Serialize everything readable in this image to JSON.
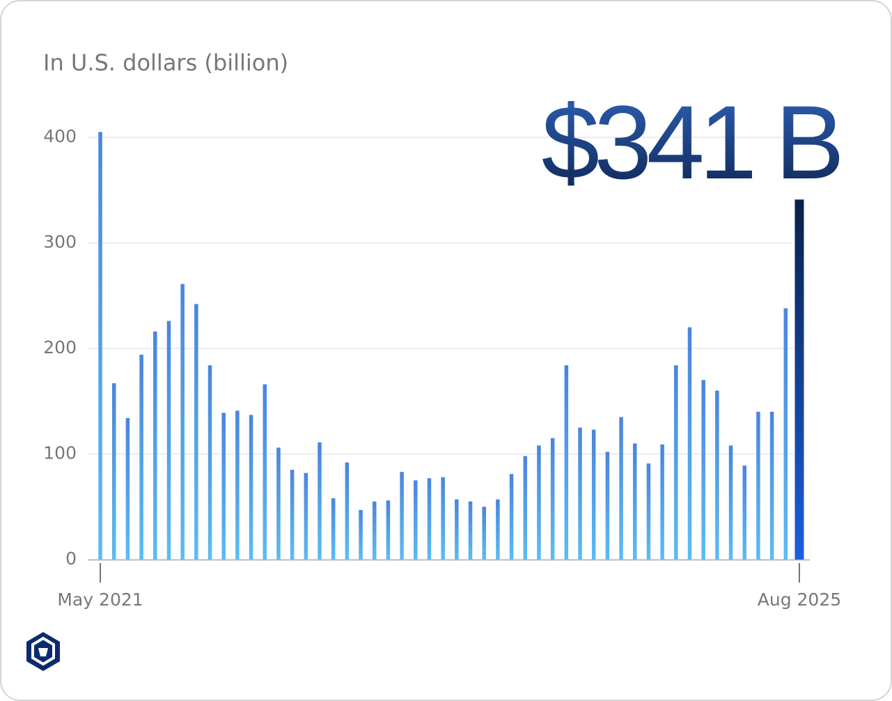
{
  "chart_data": {
    "type": "bar",
    "title": "In U.S. dollars (billion)",
    "categories": [
      "May 2021",
      null,
      null,
      null,
      null,
      null,
      null,
      null,
      null,
      null,
      null,
      null,
      null,
      null,
      null,
      null,
      null,
      null,
      null,
      null,
      null,
      null,
      null,
      null,
      null,
      null,
      null,
      null,
      null,
      null,
      null,
      null,
      null,
      null,
      null,
      null,
      null,
      null,
      null,
      null,
      null,
      null,
      null,
      null,
      null,
      null,
      null,
      null,
      null,
      null,
      null,
      "Aug 2025"
    ],
    "values": [
      405,
      167,
      134,
      194,
      216,
      226,
      261,
      242,
      184,
      139,
      141,
      137,
      166,
      106,
      85,
      82,
      111,
      58,
      92,
      47,
      55,
      56,
      83,
      75,
      77,
      78,
      57,
      55,
      50,
      57,
      81,
      98,
      108,
      115,
      184,
      125,
      123,
      102,
      135,
      110,
      91,
      109,
      184,
      220,
      170,
      160,
      108,
      89,
      140,
      140,
      238,
      341
    ],
    "value_labels": [
      null,
      null,
      null,
      null,
      null,
      null,
      null,
      null,
      null,
      null,
      null,
      null,
      null,
      null,
      null,
      null,
      null,
      null,
      null,
      null,
      null,
      null,
      null,
      null,
      null,
      null,
      null,
      null,
      null,
      null,
      null,
      null,
      null,
      null,
      null,
      null,
      null,
      null,
      null,
      null,
      null,
      null,
      null,
      null,
      null,
      null,
      null,
      null,
      null,
      null,
      null,
      "$341 B"
    ],
    "color": "#4d8fe6",
    "highlight_color": "#0b2a5c",
    "ylim": [
      0,
      405
    ],
    "yticks": [
      0,
      100,
      200,
      300,
      400
    ],
    "grid": true
  }
}
